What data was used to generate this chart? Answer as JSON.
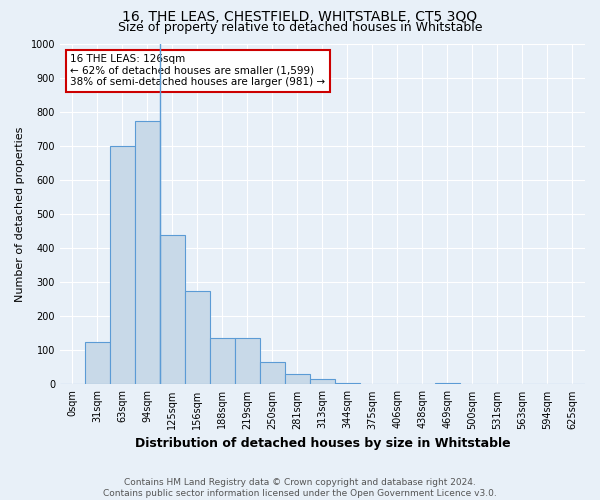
{
  "title": "16, THE LEAS, CHESTFIELD, WHITSTABLE, CT5 3QQ",
  "subtitle": "Size of property relative to detached houses in Whitstable",
  "xlabel": "Distribution of detached houses by size in Whitstable",
  "ylabel": "Number of detached properties",
  "footer_line1": "Contains HM Land Registry data © Crown copyright and database right 2024.",
  "footer_line2": "Contains public sector information licensed under the Open Government Licence v3.0.",
  "bar_labels": [
    "0sqm",
    "31sqm",
    "63sqm",
    "94sqm",
    "125sqm",
    "156sqm",
    "188sqm",
    "219sqm",
    "250sqm",
    "281sqm",
    "313sqm",
    "344sqm",
    "375sqm",
    "406sqm",
    "438sqm",
    "469sqm",
    "500sqm",
    "531sqm",
    "563sqm",
    "594sqm",
    "625sqm"
  ],
  "bar_values": [
    0,
    125,
    700,
    775,
    440,
    275,
    135,
    135,
    65,
    30,
    15,
    5,
    0,
    0,
    0,
    5,
    0,
    0,
    0,
    0,
    0
  ],
  "bar_color": "#c8d9e8",
  "bar_edge_color": "#5b9bd5",
  "vline_x": 3.5,
  "annotation_text": "16 THE LEAS: 126sqm\n← 62% of detached houses are smaller (1,599)\n38% of semi-detached houses are larger (981) →",
  "annotation_box_color": "#ffffff",
  "annotation_box_edge_color": "#cc0000",
  "ylim": [
    0,
    1000
  ],
  "yticks": [
    0,
    100,
    200,
    300,
    400,
    500,
    600,
    700,
    800,
    900,
    1000
  ],
  "background_color": "#e8f0f8",
  "grid_color": "#ffffff",
  "title_fontsize": 10,
  "subtitle_fontsize": 9,
  "ylabel_fontsize": 8,
  "xlabel_fontsize": 9,
  "tick_fontsize": 7,
  "footer_fontsize": 6.5,
  "annotation_fontsize": 7.5
}
